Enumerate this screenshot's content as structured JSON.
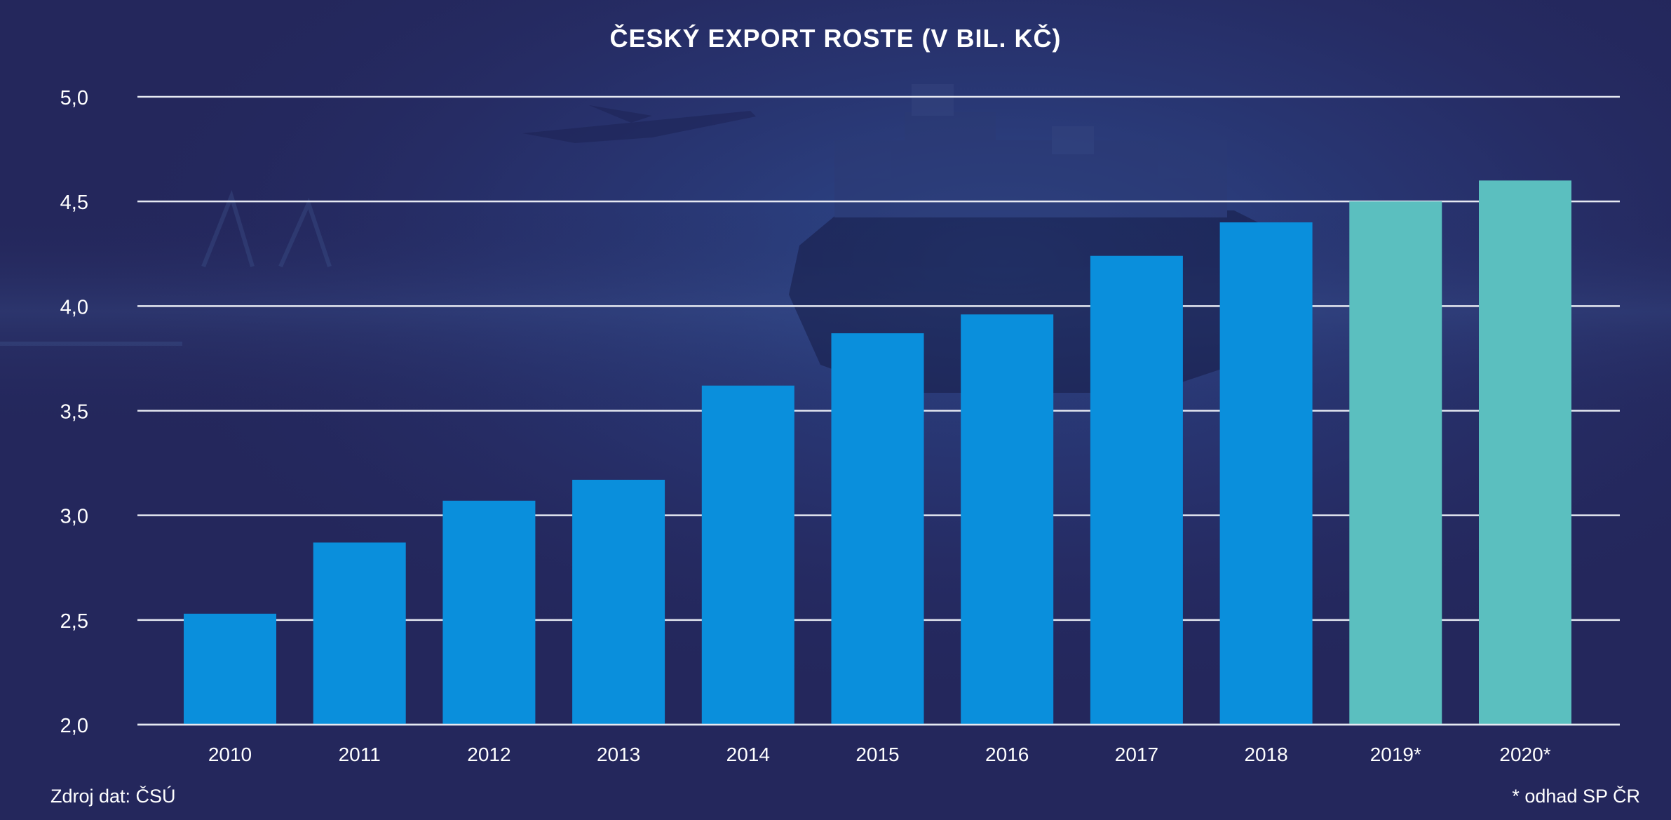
{
  "chart_data": {
    "type": "bar",
    "title": "ČESKÝ EXPORT ROSTE (V BIL. KČ)",
    "categories": [
      "2010",
      "2011",
      "2012",
      "2013",
      "2014",
      "2015",
      "2016",
      "2017",
      "2018",
      "2019*",
      "2020*"
    ],
    "values": [
      2.53,
      2.87,
      3.07,
      3.17,
      3.62,
      3.87,
      3.96,
      4.24,
      4.4,
      4.5,
      4.6
    ],
    "estimated": [
      false,
      false,
      false,
      false,
      false,
      false,
      false,
      false,
      false,
      true,
      true
    ],
    "xlabel": "",
    "ylabel": "",
    "ylim": [
      2.0,
      5.0
    ],
    "yticks": [
      "2,0",
      "2,5",
      "3,0",
      "3,5",
      "4,0",
      "4,5",
      "5,0"
    ],
    "ytick_values": [
      2.0,
      2.5,
      3.0,
      3.5,
      4.0,
      4.5,
      5.0
    ],
    "grid": true,
    "legend": "none"
  },
  "colors": {
    "background": "#25285e",
    "bar_actual": "#0a8fdc",
    "bar_estimate": "#5bbfbf",
    "gridline": "#e6e9f2",
    "text": "#ffffff"
  },
  "footer": {
    "source": "Zdroj dat: ČSÚ",
    "note": "* odhad SP ČR"
  }
}
